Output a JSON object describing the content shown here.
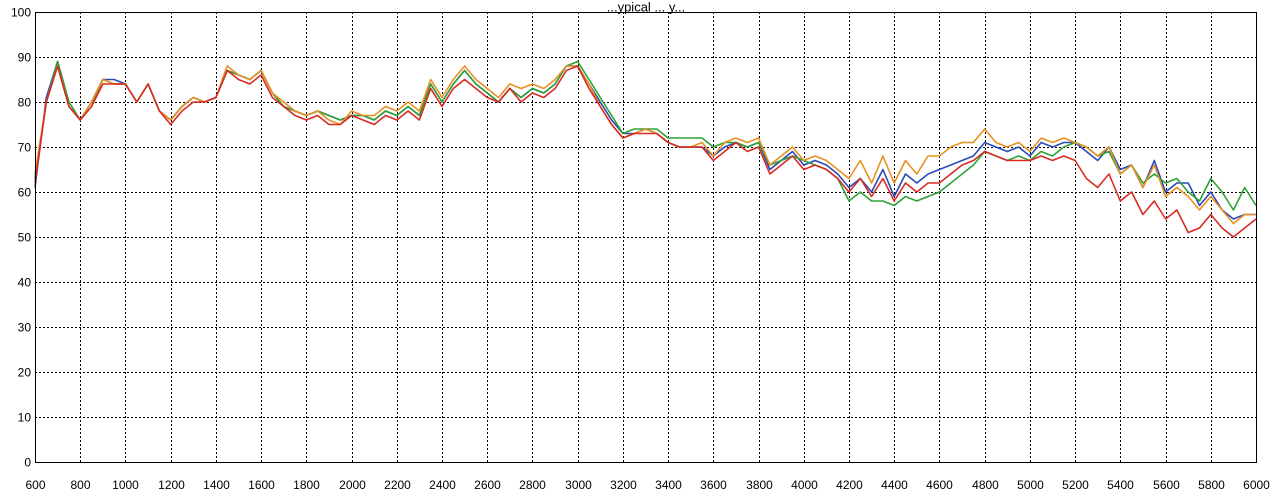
{
  "chart_data": {
    "type": "line",
    "title": "...ypical ... y...",
    "xlabel": "",
    "ylabel": "",
    "xlim": [
      600,
      6000
    ],
    "ylim": [
      0,
      100
    ],
    "grid": true,
    "legend": "none",
    "x_ticks": [
      600,
      800,
      1000,
      1200,
      1400,
      1600,
      1800,
      2000,
      2200,
      2400,
      2600,
      2800,
      3000,
      3200,
      3400,
      3600,
      3800,
      4000,
      4200,
      4400,
      4600,
      4800,
      5000,
      5200,
      5400,
      5600,
      5800,
      6000
    ],
    "y_ticks": [
      0,
      10,
      20,
      30,
      40,
      50,
      60,
      70,
      80,
      90,
      100
    ],
    "x": [
      600,
      650,
      700,
      750,
      800,
      850,
      900,
      950,
      1000,
      1050,
      1100,
      1150,
      1200,
      1250,
      1300,
      1350,
      1400,
      1450,
      1500,
      1550,
      1600,
      1650,
      1700,
      1750,
      1800,
      1850,
      1900,
      1950,
      2000,
      2050,
      2100,
      2150,
      2200,
      2250,
      2300,
      2350,
      2400,
      2450,
      2500,
      2550,
      2600,
      2650,
      2700,
      2750,
      2800,
      2850,
      2900,
      2950,
      3000,
      3050,
      3100,
      3150,
      3200,
      3250,
      3300,
      3350,
      3400,
      3450,
      3500,
      3550,
      3600,
      3650,
      3700,
      3750,
      3800,
      3850,
      3900,
      3950,
      4000,
      4050,
      4100,
      4150,
      4200,
      4250,
      4300,
      4350,
      4400,
      4450,
      4500,
      4550,
      4600,
      4650,
      4700,
      4750,
      4800,
      4850,
      4900,
      4950,
      5000,
      5050,
      5100,
      5150,
      5200,
      5250,
      5300,
      5350,
      5400,
      5450,
      5500,
      5550,
      5600,
      5650,
      5700,
      5750,
      5800,
      5850,
      5900,
      5950,
      6000
    ],
    "series": [
      {
        "color": "#2a4bb5",
        "values": [
          61,
          81,
          89,
          80,
          76,
          80,
          85,
          85,
          84,
          80,
          84,
          78,
          76,
          79,
          81,
          80,
          81,
          87,
          86,
          85,
          87,
          82,
          79,
          78,
          77,
          78,
          77,
          76,
          77,
          77,
          76,
          78,
          77,
          79,
          77,
          84,
          80,
          84,
          87,
          84,
          82,
          80,
          83,
          81,
          83,
          82,
          84,
          88,
          88,
          84,
          80,
          76,
          73,
          73,
          74,
          73,
          71,
          70,
          70,
          70,
          68,
          70,
          71,
          70,
          71,
          65,
          67,
          69,
          66,
          67,
          66,
          64,
          61,
          63,
          60,
          65,
          59,
          64,
          62,
          64,
          65,
          66,
          67,
          68,
          71,
          70,
          69,
          70,
          68,
          71,
          70,
          71,
          71,
          69,
          67,
          70,
          65,
          66,
          61,
          67,
          60,
          62,
          62,
          57,
          60,
          56,
          54,
          55,
          55
        ]
      },
      {
        "color": "#2ea335",
        "values": [
          63,
          80,
          89,
          80,
          76,
          79,
          85,
          84,
          84,
          80,
          84,
          78,
          76,
          79,
          81,
          80,
          81,
          87,
          86,
          85,
          87,
          82,
          79,
          78,
          77,
          78,
          77,
          76,
          77,
          77,
          76,
          78,
          77,
          79,
          77,
          84,
          80,
          84,
          87,
          84,
          82,
          80,
          83,
          81,
          83,
          82,
          84,
          88,
          89,
          85,
          81,
          77,
          73,
          74,
          74,
          74,
          72,
          72,
          72,
          72,
          70,
          71,
          71,
          70,
          71,
          66,
          67,
          68,
          67,
          66,
          65,
          63,
          58,
          60,
          58,
          58,
          57,
          59,
          58,
          59,
          60,
          62,
          64,
          66,
          69,
          68,
          67,
          68,
          67,
          69,
          68,
          70,
          71,
          70,
          68,
          69,
          64,
          66,
          62,
          64,
          62,
          63,
          60,
          58,
          63,
          60,
          56,
          61,
          57
        ]
      },
      {
        "color": "#e89122",
        "values": [
          64,
          80,
          88,
          79,
          76,
          80,
          85,
          84,
          84,
          80,
          84,
          78,
          76,
          79,
          81,
          80,
          81,
          88,
          86,
          85,
          87,
          82,
          80,
          78,
          77,
          78,
          76,
          75,
          78,
          77,
          77,
          79,
          78,
          80,
          78,
          85,
          81,
          85,
          88,
          85,
          83,
          81,
          84,
          83,
          84,
          83,
          85,
          88,
          88,
          84,
          79,
          75,
          72,
          73,
          74,
          73,
          71,
          70,
          70,
          71,
          68,
          71,
          72,
          71,
          72,
          66,
          68,
          70,
          67,
          68,
          67,
          65,
          63,
          67,
          62,
          68,
          62,
          67,
          64,
          68,
          68,
          70,
          71,
          71,
          74,
          71,
          70,
          71,
          69,
          72,
          71,
          72,
          71,
          70,
          68,
          70,
          64,
          66,
          61,
          66,
          59,
          61,
          59,
          56,
          59,
          56,
          53,
          55,
          55
        ]
      },
      {
        "color": "#d92b23",
        "values": [
          62,
          80,
          88,
          79,
          76,
          79,
          84,
          84,
          84,
          80,
          84,
          78,
          75,
          78,
          80,
          80,
          81,
          87,
          85,
          84,
          86,
          81,
          79,
          77,
          76,
          77,
          75,
          75,
          77,
          76,
          75,
          77,
          76,
          78,
          76,
          83,
          79,
          83,
          85,
          83,
          81,
          80,
          83,
          80,
          82,
          81,
          83,
          87,
          88,
          83,
          79,
          75,
          72,
          73,
          73,
          73,
          71,
          70,
          70,
          70,
          67,
          69,
          71,
          69,
          70,
          64,
          66,
          68,
          65,
          66,
          65,
          63,
          60,
          63,
          59,
          63,
          58,
          62,
          60,
          62,
          62,
          64,
          66,
          67,
          69,
          68,
          67,
          67,
          67,
          68,
          67,
          68,
          67,
          63,
          61,
          64,
          58,
          60,
          55,
          58,
          54,
          56,
          51,
          52,
          55,
          52,
          50,
          52,
          54
        ]
      }
    ]
  }
}
